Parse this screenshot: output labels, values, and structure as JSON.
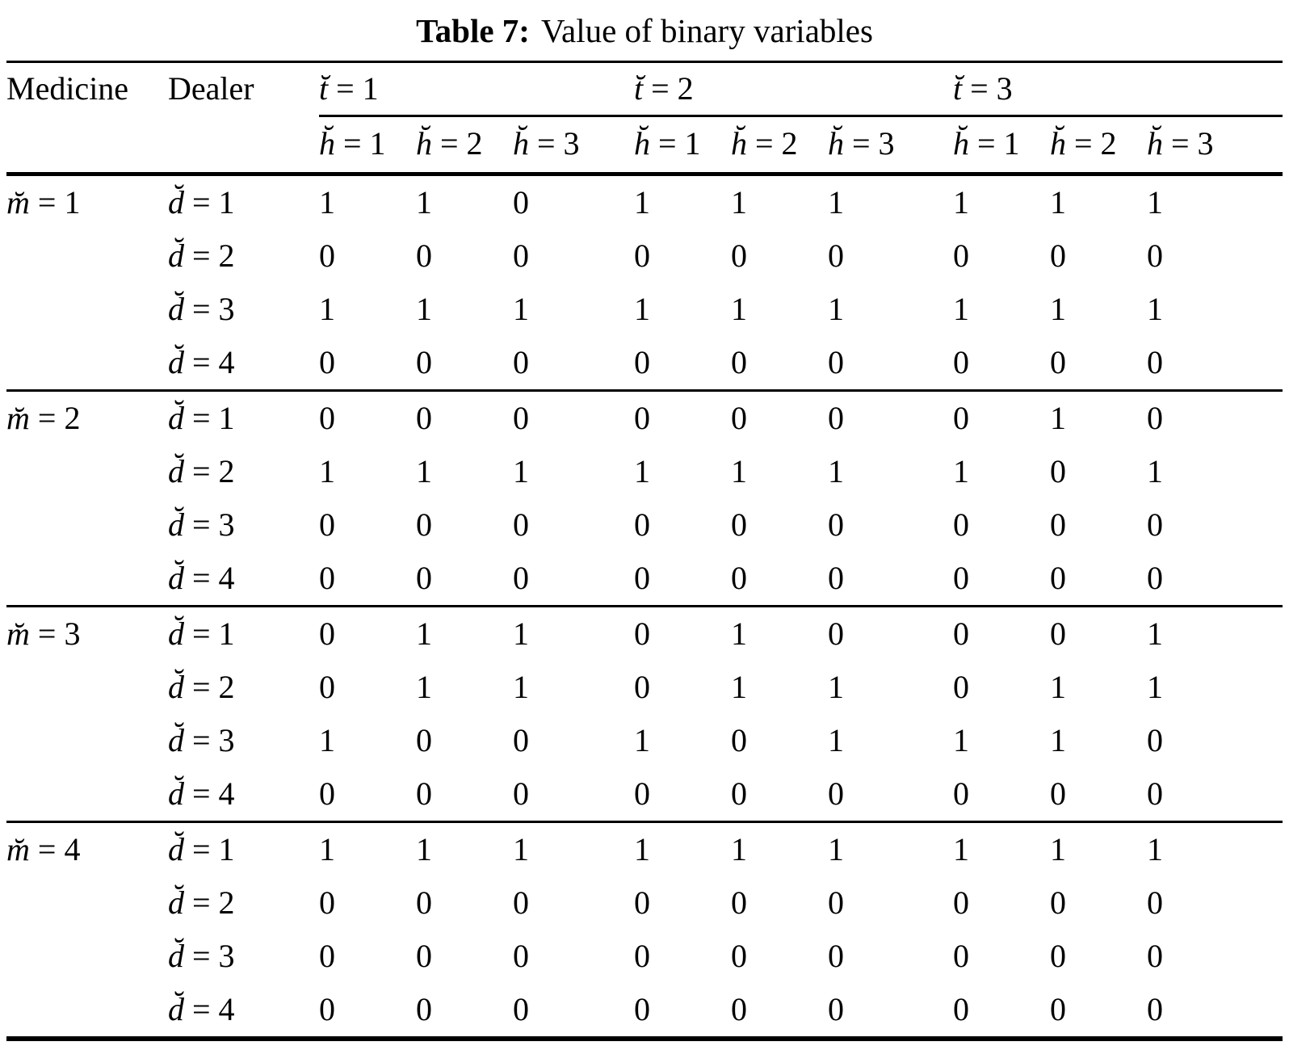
{
  "title": {
    "label": "Table 7:",
    "caption": "Value of binary variables"
  },
  "header": {
    "medicine": "Medicine",
    "dealer": "Dealer",
    "t_groups": [
      {
        "var": "t̆",
        "rest": "= 1"
      },
      {
        "var": "t̆",
        "rest": "= 2"
      },
      {
        "var": "t̆",
        "rest": "= 3"
      }
    ],
    "h_labels": [
      {
        "var": "h̆",
        "rest": "= 1"
      },
      {
        "var": "h̆",
        "rest": "= 2"
      },
      {
        "var": "h̆",
        "rest": "= 3"
      },
      {
        "var": "h̆",
        "rest": "= 1"
      },
      {
        "var": "h̆",
        "rest": "= 2"
      },
      {
        "var": "h̆",
        "rest": "= 3"
      },
      {
        "var": "h̆",
        "rest": "= 1"
      },
      {
        "var": "h̆",
        "rest": "= 2"
      },
      {
        "var": "h̆",
        "rest": "= 3"
      }
    ]
  },
  "blocks": [
    {
      "medicine": {
        "var": "m̆",
        "rest": "= 1"
      },
      "rows": [
        {
          "dealer": {
            "var": "d̆",
            "rest": "= 1"
          },
          "values": [
            "1",
            "1",
            "0",
            "1",
            "1",
            "1",
            "1",
            "1",
            "1"
          ]
        },
        {
          "dealer": {
            "var": "d̆",
            "rest": "= 2"
          },
          "values": [
            "0",
            "0",
            "0",
            "0",
            "0",
            "0",
            "0",
            "0",
            "0"
          ]
        },
        {
          "dealer": {
            "var": "d̆",
            "rest": "= 3"
          },
          "values": [
            "1",
            "1",
            "1",
            "1",
            "1",
            "1",
            "1",
            "1",
            "1"
          ]
        },
        {
          "dealer": {
            "var": "d̆",
            "rest": "= 4"
          },
          "values": [
            "0",
            "0",
            "0",
            "0",
            "0",
            "0",
            "0",
            "0",
            "0"
          ]
        }
      ]
    },
    {
      "medicine": {
        "var": "m̆",
        "rest": "= 2"
      },
      "rows": [
        {
          "dealer": {
            "var": "d̆",
            "rest": "= 1"
          },
          "values": [
            "0",
            "0",
            "0",
            "0",
            "0",
            "0",
            "0",
            "1",
            "0"
          ]
        },
        {
          "dealer": {
            "var": "d̆",
            "rest": "= 2"
          },
          "values": [
            "1",
            "1",
            "1",
            "1",
            "1",
            "1",
            "1",
            "0",
            "1"
          ]
        },
        {
          "dealer": {
            "var": "d̆",
            "rest": "= 3"
          },
          "values": [
            "0",
            "0",
            "0",
            "0",
            "0",
            "0",
            "0",
            "0",
            "0"
          ]
        },
        {
          "dealer": {
            "var": "d̆",
            "rest": "= 4"
          },
          "values": [
            "0",
            "0",
            "0",
            "0",
            "0",
            "0",
            "0",
            "0",
            "0"
          ]
        }
      ]
    },
    {
      "medicine": {
        "var": "m̆",
        "rest": "= 3"
      },
      "rows": [
        {
          "dealer": {
            "var": "d̆",
            "rest": "= 1"
          },
          "values": [
            "0",
            "1",
            "1",
            "0",
            "1",
            "0",
            "0",
            "0",
            "1"
          ]
        },
        {
          "dealer": {
            "var": "d̆",
            "rest": "= 2"
          },
          "values": [
            "0",
            "1",
            "1",
            "0",
            "1",
            "1",
            "0",
            "1",
            "1"
          ]
        },
        {
          "dealer": {
            "var": "d̆",
            "rest": "= 3"
          },
          "values": [
            "1",
            "0",
            "0",
            "1",
            "0",
            "1",
            "1",
            "1",
            "0"
          ]
        },
        {
          "dealer": {
            "var": "d̆",
            "rest": "= 4"
          },
          "values": [
            "0",
            "0",
            "0",
            "0",
            "0",
            "0",
            "0",
            "0",
            "0"
          ]
        }
      ]
    },
    {
      "medicine": {
        "var": "m̆",
        "rest": "= 4"
      },
      "rows": [
        {
          "dealer": {
            "var": "d̆",
            "rest": "= 1"
          },
          "values": [
            "1",
            "1",
            "1",
            "1",
            "1",
            "1",
            "1",
            "1",
            "1"
          ]
        },
        {
          "dealer": {
            "var": "d̆",
            "rest": "= 2"
          },
          "values": [
            "0",
            "0",
            "0",
            "0",
            "0",
            "0",
            "0",
            "0",
            "0"
          ]
        },
        {
          "dealer": {
            "var": "d̆",
            "rest": "= 3"
          },
          "values": [
            "0",
            "0",
            "0",
            "0",
            "0",
            "0",
            "0",
            "0",
            "0"
          ]
        },
        {
          "dealer": {
            "var": "d̆",
            "rest": "= 4"
          },
          "values": [
            "0",
            "0",
            "0",
            "0",
            "0",
            "0",
            "0",
            "0",
            "0"
          ]
        }
      ]
    }
  ]
}
